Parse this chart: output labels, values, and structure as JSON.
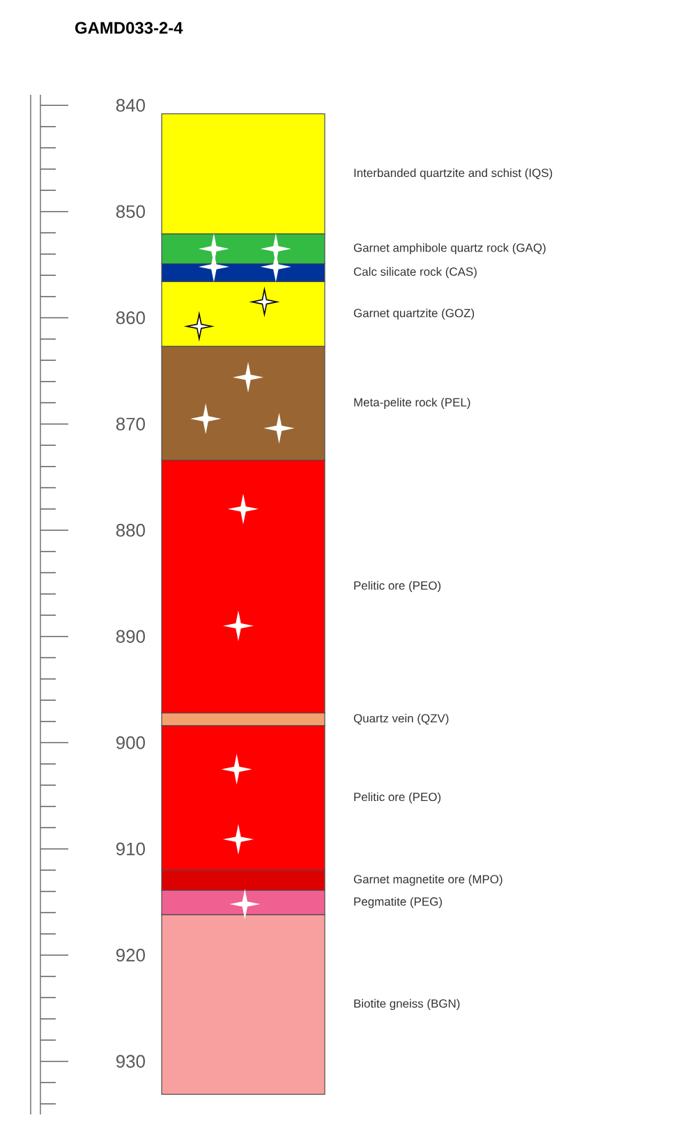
{
  "chart_data": {
    "type": "bar",
    "title": "GAMD033-2-4",
    "categories": [
      null
    ],
    "ylim": [
      935,
      839
    ],
    "tick_labels": "y",
    "grid": false,
    "yticks": [
      840,
      850,
      860,
      870,
      880,
      890,
      900,
      910,
      920,
      930
    ],
    "series": [
      {
        "name": "Interbanded quartzite and schist (IQS)",
        "color": "#ffff00",
        "base": [
          840.8
        ],
        "values": [
          11.3
        ]
      },
      {
        "name": "Garnet amphibole quartz rock (GAQ)",
        "color": "#33bb44",
        "base": [
          852.1
        ],
        "values": [
          2.8
        ]
      },
      {
        "name": "Calc silicate rock (CAS)",
        "color": "#003399",
        "base": [
          854.9
        ],
        "values": [
          1.7
        ]
      },
      {
        "name": "Garnet quartzite (GOZ)",
        "color": "#ffff00",
        "base": [
          856.6
        ],
        "values": [
          6.1
        ]
      },
      {
        "name": "Meta-pelite rock (PEL)",
        "color": "#996633",
        "base": [
          862.7
        ],
        "values": [
          10.7
        ]
      },
      {
        "name": "Pelitic ore (PEO)",
        "color": "#ff0000",
        "base": [
          873.4
        ],
        "values": [
          23.8
        ]
      },
      {
        "name": "Quartz vein (QZV)",
        "color": "#f4a070",
        "base": [
          897.2
        ],
        "values": [
          1.2
        ]
      },
      {
        "name": "Pelitic ore (PEO)",
        "color": "#ff0000",
        "base": [
          898.4
        ],
        "values": [
          13.6
        ]
      },
      {
        "name": "Garnet magnetite ore (MPO)",
        "color": "#dd0000",
        "base": [
          912.0
        ],
        "values": [
          1.9
        ]
      },
      {
        "name": "Pegmatite (PEG)",
        "color": "#f06090",
        "base": [
          913.9
        ],
        "values": [
          2.3
        ]
      },
      {
        "name": "Biotite gneiss (BGN)",
        "color": "#f8a0a0",
        "base": [
          916.2
        ],
        "values": [
          16.9
        ]
      }
    ]
  }
}
